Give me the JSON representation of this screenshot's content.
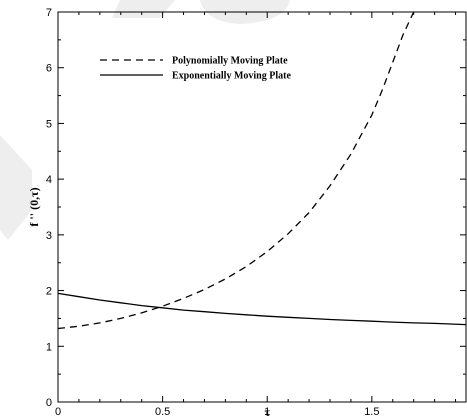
{
  "chart_data": {
    "type": "line",
    "title": "",
    "xlabel": "τ",
    "ylabel": "f '' (0,τ)",
    "xlim": [
      0,
      1.95
    ],
    "ylim": [
      0,
      7
    ],
    "x_ticks": [
      0,
      0.5,
      1,
      1.5
    ],
    "x_tick_labels": [
      "0",
      "0.5",
      "1",
      "1.5"
    ],
    "y_ticks": [
      0,
      1,
      2,
      3,
      4,
      5,
      6,
      7
    ],
    "y_tick_labels": [
      "0",
      "1",
      "2",
      "3",
      "4",
      "5",
      "6",
      "7"
    ],
    "grid": false,
    "legend_position": "top-left",
    "series": [
      {
        "name": "Polynomially Moving Plate",
        "style": "dashed",
        "color": "#000000",
        "x": [
          0,
          0.1,
          0.2,
          0.3,
          0.4,
          0.5,
          0.6,
          0.7,
          0.8,
          0.9,
          1.0,
          1.1,
          1.2,
          1.3,
          1.4,
          1.5,
          1.55,
          1.6,
          1.65,
          1.7
        ],
        "y": [
          1.32,
          1.36,
          1.42,
          1.5,
          1.6,
          1.72,
          1.86,
          2.02,
          2.21,
          2.43,
          2.7,
          3.02,
          3.4,
          3.88,
          4.45,
          5.15,
          5.6,
          6.1,
          6.6,
          7.0
        ]
      },
      {
        "name": "Exponentially Moving Plate",
        "style": "solid",
        "color": "#000000",
        "x": [
          0,
          0.1,
          0.2,
          0.3,
          0.4,
          0.5,
          0.6,
          0.7,
          0.8,
          0.9,
          1.0,
          1.1,
          1.2,
          1.3,
          1.4,
          1.5,
          1.6,
          1.7,
          1.8,
          1.95
        ],
        "y": [
          1.95,
          1.89,
          1.83,
          1.78,
          1.73,
          1.69,
          1.65,
          1.62,
          1.59,
          1.565,
          1.54,
          1.52,
          1.5,
          1.48,
          1.465,
          1.45,
          1.435,
          1.42,
          1.41,
          1.39
        ]
      }
    ]
  }
}
